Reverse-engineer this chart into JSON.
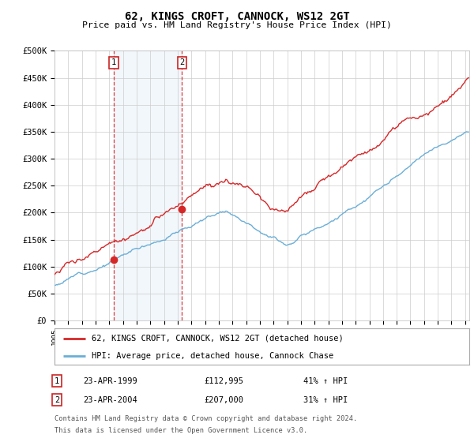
{
  "title": "62, KINGS CROFT, CANNOCK, WS12 2GT",
  "subtitle": "Price paid vs. HM Land Registry's House Price Index (HPI)",
  "ytick_labels": [
    "£0",
    "£50K",
    "£100K",
    "£150K",
    "£200K",
    "£250K",
    "£300K",
    "£350K",
    "£400K",
    "£450K",
    "£500K"
  ],
  "yticks": [
    0,
    50000,
    100000,
    150000,
    200000,
    250000,
    300000,
    350000,
    400000,
    450000,
    500000
  ],
  "legend_line1": "62, KINGS CROFT, CANNOCK, WS12 2GT (detached house)",
  "legend_line2": "HPI: Average price, detached house, Cannock Chase",
  "sale1_date": "23-APR-1999",
  "sale1_price": "£112,995",
  "sale1_hpi": "41% ↑ HPI",
  "sale2_date": "23-APR-2004",
  "sale2_price": "£207,000",
  "sale2_hpi": "31% ↑ HPI",
  "footnote1": "Contains HM Land Registry data © Crown copyright and database right 2024.",
  "footnote2": "This data is licensed under the Open Government Licence v3.0.",
  "sale1_x": 1999.32,
  "sale2_x": 2004.32,
  "sale1_y": 112995,
  "sale2_y": 207000,
  "hpi_color": "#6baed6",
  "price_color": "#d62728",
  "vline_color": "#d62728",
  "shade_color": "#dce9f5",
  "background_color": "#ffffff",
  "grid_color": "#cccccc",
  "xlim_left": 1995,
  "xlim_right": 2025.3
}
